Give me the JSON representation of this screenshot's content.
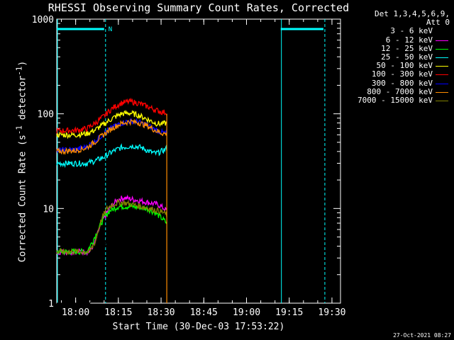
{
  "chart_data": {
    "type": "line",
    "title": "RHESSI Observing Summary Count Rates, Corrected",
    "xlabel": "Start Time (30-Dec-03 17:53:22)",
    "ylabel_parts": [
      "Corrected Count Rate (s",
      "-1",
      " detector",
      "-1",
      ")"
    ],
    "y_scale": "log",
    "ylim": [
      1,
      1000
    ],
    "xlim": [
      "17:53:22",
      "19:33:00"
    ],
    "x_ticks": [
      "18:00",
      "18:15",
      "18:30",
      "18:45",
      "19:00",
      "19:15",
      "19:30"
    ],
    "y_ticks": [
      "1",
      "10",
      "100",
      "1000"
    ],
    "legend": {
      "header1": "Det 1,3,4,5,6,9,",
      "header2": "Att 0",
      "placement": "right"
    },
    "series": [
      {
        "name": "3 - 6 keV",
        "color": "#000000",
        "time": [
          "17:53:22",
          "18:03",
          "18:05",
          "18:07",
          "18:08",
          "18:09",
          "18:10",
          "18:12",
          "18:15",
          "18:20",
          "18:25",
          "18:28",
          "18:30",
          "18:32"
        ],
        "values": [
          1,
          1,
          1,
          1.2,
          2.0,
          2.8,
          3.5,
          7.5,
          8.0,
          8.3,
          8.3,
          8.0,
          7.5,
          7.0
        ]
      },
      {
        "name": "6 - 12 keV",
        "color": "#ff00ff",
        "time": [
          "17:53:22",
          "18:05",
          "18:07",
          "18:09",
          "18:11",
          "18:13",
          "18:15",
          "18:17",
          "18:20",
          "18:23",
          "18:26",
          "18:29",
          "18:31",
          "18:32"
        ],
        "values": [
          3.5,
          3.5,
          4.5,
          7.0,
          9.0,
          11.0,
          12.5,
          13.0,
          12.5,
          12.0,
          11.5,
          11.0,
          10.0,
          9.5
        ]
      },
      {
        "name": "12 - 25 keV",
        "color": "#00ff00",
        "time": [
          "17:53:22",
          "18:00",
          "18:04",
          "18:06",
          "18:08",
          "18:10",
          "18:12",
          "18:15",
          "18:20",
          "18:25",
          "18:28",
          "18:30",
          "18:32"
        ],
        "values": [
          3.5,
          3.5,
          3.5,
          4.5,
          6.0,
          8.0,
          9.5,
          10.5,
          10.5,
          10.0,
          9.0,
          8.0,
          7.0
        ]
      },
      {
        "name": "25 - 50 keV",
        "color": "#00ffff",
        "time": [
          "17:53:22",
          "18:00",
          "18:04",
          "18:07",
          "18:10",
          "18:13",
          "18:16",
          "18:20",
          "18:23",
          "18:26",
          "18:28",
          "18:30",
          "18:32"
        ],
        "values": [
          30,
          30,
          30,
          32,
          35,
          40,
          44,
          46,
          44,
          40,
          38,
          40,
          43
        ]
      },
      {
        "name": "50 - 100 keV",
        "color": "#ffff00",
        "time": [
          "17:53:22",
          "18:00",
          "18:04",
          "18:07",
          "18:10",
          "18:13",
          "18:16",
          "18:19",
          "18:22",
          "18:25",
          "18:28",
          "18:30",
          "18:32"
        ],
        "values": [
          60,
          60,
          62,
          68,
          78,
          90,
          100,
          102,
          97,
          88,
          80,
          78,
          80
        ]
      },
      {
        "name": "100 - 300 keV",
        "color": "#ff0000",
        "time": [
          "17:53:22",
          "18:00",
          "18:04",
          "18:07",
          "18:10",
          "18:13",
          "18:16",
          "18:19",
          "18:22",
          "18:25",
          "18:28",
          "18:30",
          "18:32"
        ],
        "values": [
          66,
          67,
          70,
          80,
          95,
          115,
          130,
          135,
          130,
          120,
          110,
          105,
          103
        ]
      },
      {
        "name": "300 - 800 keV",
        "color": "#0000ff",
        "time": [
          "17:53:22",
          "18:00",
          "18:04",
          "18:07",
          "18:10",
          "18:13",
          "18:16",
          "18:19",
          "18:22",
          "18:25",
          "18:28",
          "18:30",
          "18:32"
        ],
        "values": [
          41,
          42,
          45,
          52,
          62,
          72,
          80,
          84,
          82,
          76,
          68,
          64,
          62
        ]
      },
      {
        "name": "800 - 7000 keV",
        "color": "#ff8c00",
        "time": [
          "17:53:22",
          "18:00",
          "18:04",
          "18:07",
          "18:10",
          "18:13",
          "18:16",
          "18:19",
          "18:22",
          "18:25",
          "18:28",
          "18:30",
          "18:32"
        ],
        "values": [
          40,
          41,
          44,
          51,
          61,
          71,
          79,
          83,
          81,
          75,
          67,
          63,
          61
        ]
      },
      {
        "name": "7000 - 15000 keV",
        "color": "#808000",
        "time": [
          "17:53:22",
          "18:05",
          "18:07",
          "18:09",
          "18:11",
          "18:13",
          "18:15",
          "18:17",
          "18:20",
          "18:23",
          "18:26",
          "18:29",
          "18:31",
          "18:32"
        ],
        "values": [
          3.5,
          3.5,
          4.5,
          7.5,
          10.0,
          11.0,
          11.5,
          11.5,
          11.0,
          10.5,
          10.0,
          9.5,
          9.0,
          8.5
        ]
      }
    ],
    "vertical_markers": {
      "solid": [
        "17:53:22",
        "19:12:00"
      ],
      "dashed": [
        "18:10:30",
        "19:27:30"
      ],
      "color": "#00ffff"
    },
    "flag_bars": [
      [
        "17:53:22",
        "18:10:30"
      ],
      [
        "19:12:00",
        "19:27:30"
      ]
    ],
    "flag_label": "N"
  },
  "timestamp": "27-Oct-2021 08:27"
}
